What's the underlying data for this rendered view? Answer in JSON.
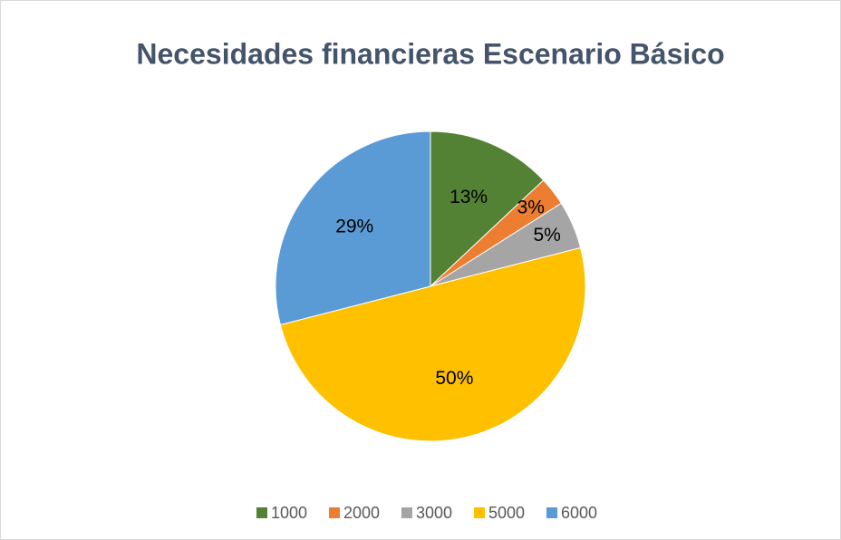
{
  "chart_data": {
    "type": "pie",
    "title": "Necesidades financieras Escenario Básico",
    "categories": [
      "1000",
      "2000",
      "3000",
      "5000",
      "6000"
    ],
    "values": [
      13,
      3,
      5,
      50,
      29
    ],
    "value_labels": [
      "13%",
      "3%",
      "5%",
      "50%",
      "29%"
    ],
    "colors": [
      "#548235",
      "#ed7d31",
      "#a5a5a5",
      "#ffc000",
      "#5b9bd5"
    ],
    "legend": "bottom"
  }
}
